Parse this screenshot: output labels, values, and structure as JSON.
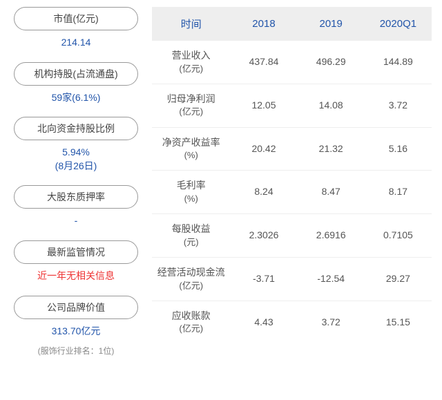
{
  "left": {
    "items": [
      {
        "label": "市值(亿元)",
        "value": "214.14",
        "color": "blue"
      },
      {
        "label": "机构持股(占流通盘)",
        "value": "59家(6.1%)",
        "color": "blue"
      },
      {
        "label": "北向资金持股比例",
        "value": "5.94%",
        "sub": "(8月26日)",
        "color": "blue"
      },
      {
        "label": "大股东质押率",
        "value": "-",
        "color": "blue"
      },
      {
        "label": "最新监管情况",
        "value": "近一年无相关信息",
        "color": "red"
      },
      {
        "label": "公司品牌价值",
        "value": "313.70亿元",
        "color": "blue",
        "foot": "(服饰行业排名：1位)"
      }
    ]
  },
  "table": {
    "headers": [
      "时间",
      "2018",
      "2019",
      "2020Q1"
    ],
    "rows": [
      {
        "label1": "营业收入",
        "label2": "(亿元)",
        "c1": "437.84",
        "c2": "496.29",
        "c3": "144.89"
      },
      {
        "label1": "归母净利润",
        "label2": "(亿元)",
        "c1": "12.05",
        "c2": "14.08",
        "c3": "3.72"
      },
      {
        "label1": "净资产收益率",
        "label2": "(%)",
        "c1": "20.42",
        "c2": "21.32",
        "c3": "5.16"
      },
      {
        "label1": "毛利率",
        "label2": "(%)",
        "c1": "8.24",
        "c2": "8.47",
        "c3": "8.17"
      },
      {
        "label1": "每股收益",
        "label2": "(元)",
        "c1": "2.3026",
        "c2": "2.6916",
        "c3": "0.7105"
      },
      {
        "label1": "经营活动现金流",
        "label2": "(亿元)",
        "c1": "-3.71",
        "c2": "-12.54",
        "c3": "29.27"
      },
      {
        "label1": "应收账款",
        "label2": "(亿元)",
        "c1": "4.43",
        "c2": "3.72",
        "c3": "15.15"
      }
    ]
  },
  "colors": {
    "blue": "#2255aa",
    "red": "#e33",
    "header_bg": "#eeeeee",
    "text": "#555",
    "border": "#eee"
  }
}
